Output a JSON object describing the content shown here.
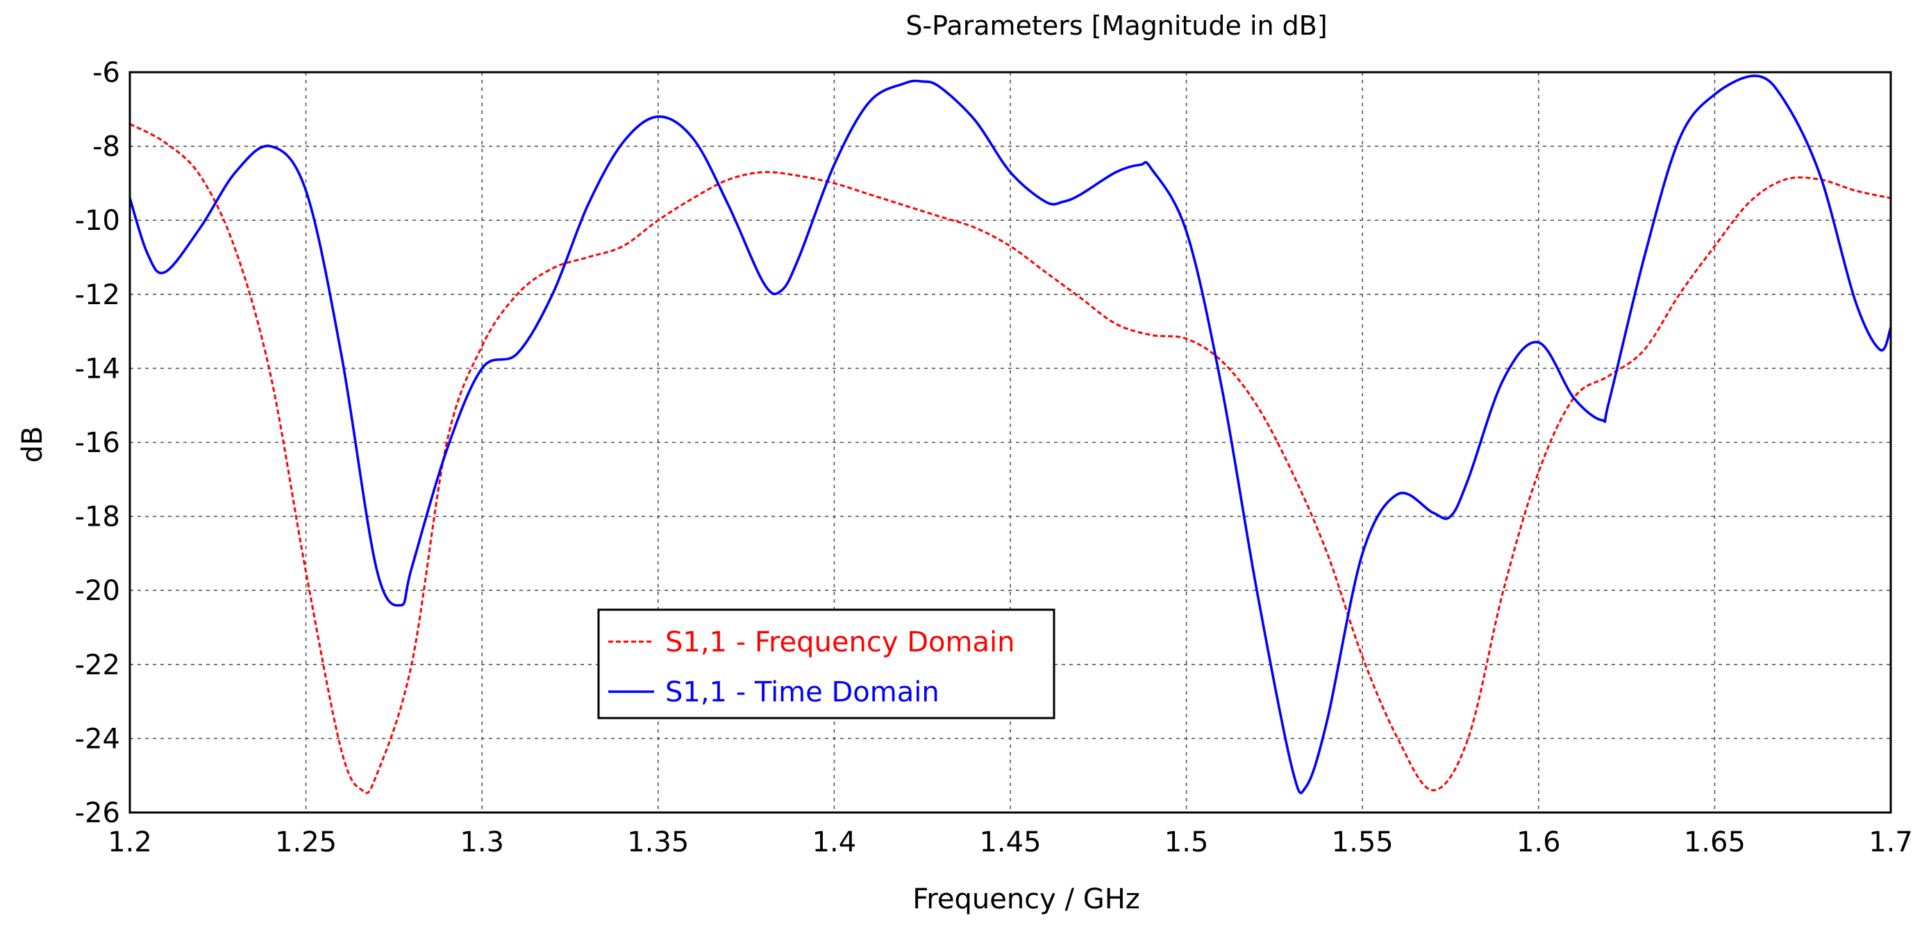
{
  "chart_data": {
    "type": "line",
    "title": "S-Parameters [Magnitude in dB]",
    "xlabel": "Frequency / GHz",
    "ylabel": "dB",
    "xlim": [
      1.2,
      1.7
    ],
    "ylim": [
      -26,
      -6
    ],
    "x_ticks": [
      1.2,
      1.25,
      1.3,
      1.35,
      1.4,
      1.45,
      1.5,
      1.55,
      1.6,
      1.65,
      1.7
    ],
    "x_tick_labels": [
      "1.2",
      "1.25",
      "1.3",
      "1.35",
      "1.4",
      "1.45",
      "1.5",
      "1.55",
      "1.6",
      "1.65",
      "1.7"
    ],
    "y_ticks": [
      -6,
      -8,
      -10,
      -12,
      -14,
      -16,
      -18,
      -20,
      -22,
      -24,
      -26
    ],
    "y_tick_labels": [
      "-6",
      "-8",
      "-10",
      "-12",
      "-14",
      "-16",
      "-18",
      "-20",
      "-22",
      "-24",
      "-26"
    ],
    "grid": true,
    "legend_position": "lower-center",
    "series": [
      {
        "name": "S1,1 - Frequency Domain",
        "color": "#ff0000",
        "style": "dashed",
        "x": [
          1.2,
          1.21,
          1.22,
          1.23,
          1.24,
          1.25,
          1.26,
          1.266,
          1.27,
          1.28,
          1.29,
          1.3,
          1.31,
          1.32,
          1.33,
          1.34,
          1.35,
          1.36,
          1.37,
          1.38,
          1.39,
          1.4,
          1.41,
          1.42,
          1.43,
          1.44,
          1.45,
          1.46,
          1.47,
          1.48,
          1.49,
          1.5,
          1.51,
          1.52,
          1.53,
          1.54,
          1.55,
          1.56,
          1.57,
          1.58,
          1.59,
          1.6,
          1.61,
          1.62,
          1.63,
          1.64,
          1.65,
          1.66,
          1.67,
          1.68,
          1.69,
          1.7
        ],
        "y": [
          -7.4,
          -7.9,
          -8.8,
          -10.8,
          -14.2,
          -19.5,
          -24.3,
          -25.4,
          -25.0,
          -22.0,
          -16.0,
          -13.4,
          -12.0,
          -11.3,
          -11.0,
          -10.7,
          -10.0,
          -9.4,
          -8.9,
          -8.7,
          -8.8,
          -9.0,
          -9.3,
          -9.6,
          -9.9,
          -10.2,
          -10.7,
          -11.4,
          -12.1,
          -12.8,
          -13.1,
          -13.2,
          -13.8,
          -15.0,
          -16.8,
          -19.0,
          -21.8,
          -24.0,
          -25.4,
          -24.0,
          -20.0,
          -16.8,
          -14.8,
          -14.2,
          -13.5,
          -12.0,
          -10.7,
          -9.5,
          -8.9,
          -8.9,
          -9.2,
          -9.4
        ]
      },
      {
        "name": "S1,1 - Time Domain",
        "color": "#0000ff",
        "style": "solid",
        "x": [
          1.2,
          1.205,
          1.21,
          1.22,
          1.23,
          1.24,
          1.25,
          1.26,
          1.27,
          1.277,
          1.28,
          1.29,
          1.3,
          1.31,
          1.32,
          1.33,
          1.34,
          1.35,
          1.36,
          1.37,
          1.38,
          1.385,
          1.39,
          1.4,
          1.41,
          1.42,
          1.425,
          1.43,
          1.44,
          1.45,
          1.46,
          1.465,
          1.47,
          1.48,
          1.487,
          1.49,
          1.5,
          1.51,
          1.52,
          1.53,
          1.534,
          1.54,
          1.55,
          1.56,
          1.57,
          1.575,
          1.58,
          1.59,
          1.6,
          1.61,
          1.618,
          1.62,
          1.63,
          1.64,
          1.65,
          1.662,
          1.67,
          1.68,
          1.69,
          1.697,
          1.7
        ],
        "y": [
          -9.4,
          -10.9,
          -11.4,
          -10.2,
          -8.7,
          -8.0,
          -9.2,
          -13.6,
          -19.4,
          -20.4,
          -19.4,
          -16.2,
          -14.0,
          -13.6,
          -12.0,
          -9.6,
          -7.9,
          -7.2,
          -7.8,
          -9.6,
          -11.7,
          -11.9,
          -11.0,
          -8.5,
          -6.8,
          -6.3,
          -6.25,
          -6.4,
          -7.3,
          -8.7,
          -9.5,
          -9.5,
          -9.3,
          -8.7,
          -8.5,
          -8.6,
          -10.3,
          -14.5,
          -20.0,
          -24.8,
          -25.3,
          -23.5,
          -19.0,
          -17.4,
          -17.9,
          -18.0,
          -17.0,
          -14.3,
          -13.3,
          -14.8,
          -15.4,
          -14.9,
          -11.0,
          -7.8,
          -6.6,
          -6.1,
          -6.8,
          -8.8,
          -12.2,
          -13.5,
          -12.9
        ]
      }
    ]
  }
}
